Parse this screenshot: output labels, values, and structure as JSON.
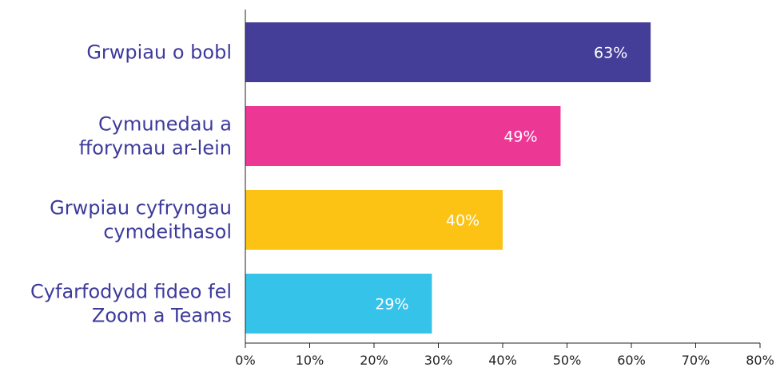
{
  "chart_data": {
    "type": "bar",
    "orientation": "horizontal",
    "categories": [
      [
        "Grwpiau o bobl"
      ],
      [
        "Cymunedau a",
        "fforymau ar-lein"
      ],
      [
        "Grwpiau cyfryngau",
        "cymdeithasol"
      ],
      [
        "Cyfarfodydd fideo fel",
        "Zoom a Teams"
      ]
    ],
    "values": [
      63,
      49,
      40,
      29
    ],
    "data_labels": [
      "63%",
      "49%",
      "40%",
      "29%"
    ],
    "bar_colors": [
      "#443e98",
      "#ec3795",
      "#fcc315",
      "#35c3ea"
    ],
    "x_ticks": [
      "0%",
      "10%",
      "20%",
      "30%",
      "40%",
      "50%",
      "60%",
      "70%",
      "80%"
    ],
    "xlim": [
      0,
      80
    ],
    "grid": false,
    "legend": "none",
    "title": "",
    "xlabel": "",
    "ylabel": ""
  }
}
